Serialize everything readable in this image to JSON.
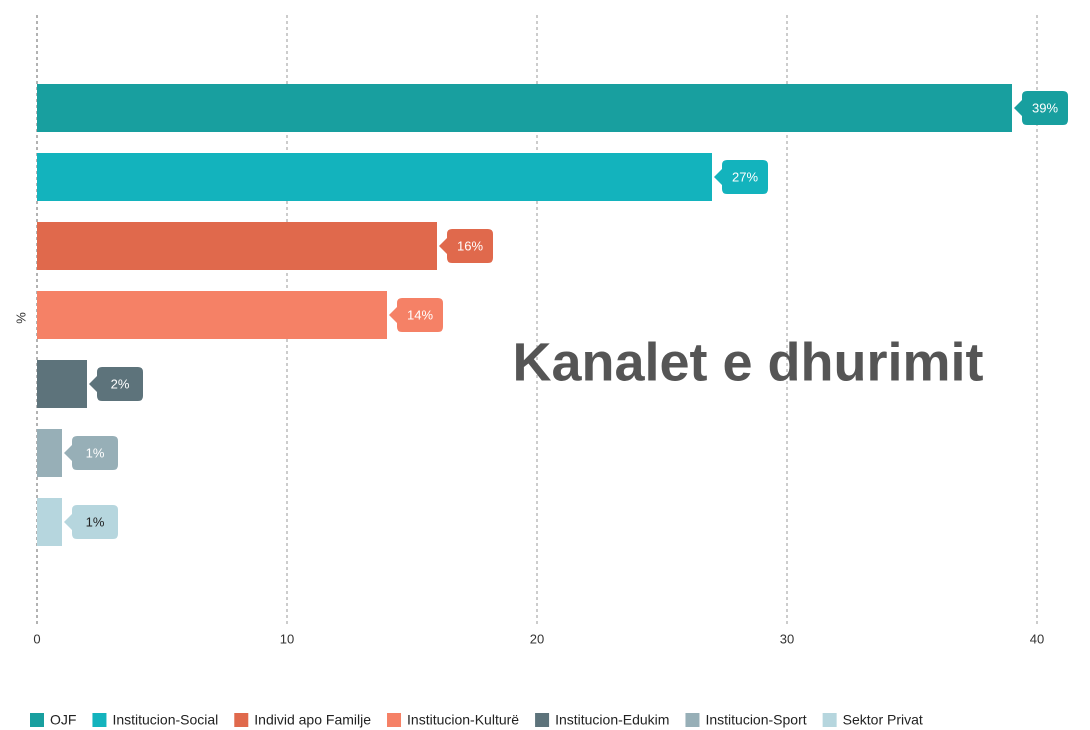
{
  "chart_data": {
    "type": "hbar",
    "title": "Kanalet e dhurimit",
    "y_label": "%",
    "xlim": [
      0,
      42.12
    ],
    "xticks": [
      0,
      10,
      20,
      30,
      40
    ],
    "grid": true,
    "legend": "bottom",
    "series": [
      {
        "name": "OJF",
        "color": "#189f9f",
        "label_text_color": "#ffffff",
        "values": [
          39
        ],
        "value_labels": [
          "39%"
        ]
      },
      {
        "name": "Institucion-Social",
        "color": "#13b3bd",
        "label_text_color": "#ffffff",
        "values": [
          27
        ],
        "value_labels": [
          "27%"
        ]
      },
      {
        "name": "Individ apo Familje",
        "color": "#e0694c",
        "label_text_color": "#ffffff",
        "values": [
          16
        ],
        "value_labels": [
          "16%"
        ]
      },
      {
        "name": "Institucion-Kulturë",
        "color": "#f58166",
        "label_text_color": "#ffffff",
        "values": [
          14
        ],
        "value_labels": [
          "14%"
        ]
      },
      {
        "name": "Institucion-Edukim",
        "color": "#5d737b",
        "label_text_color": "#ffffff",
        "values": [
          2
        ],
        "value_labels": [
          "2%"
        ]
      },
      {
        "name": "Institucion-Sport",
        "color": "#97afb7",
        "label_text_color": "#ffffff",
        "values": [
          1
        ],
        "value_labels": [
          "1%"
        ]
      },
      {
        "name": "Sektor Privat",
        "color": "#b6d6de",
        "label_text_color": "#222222",
        "values": [
          1
        ],
        "value_labels": [
          "1%"
        ]
      }
    ]
  }
}
